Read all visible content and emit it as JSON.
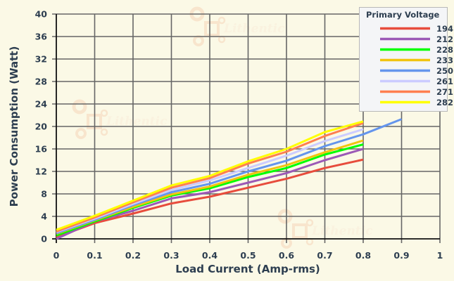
{
  "chart_data": {
    "type": "line",
    "title": "",
    "xlabel": "Load Current (Amp-rms)",
    "ylabel": "Power Consumption (Watt)",
    "xlim": [
      0,
      1
    ],
    "ylim": [
      0,
      40
    ],
    "x_ticks": [
      "0",
      "0.1",
      "0.2",
      "0.3",
      "0.4",
      "0.5",
      "0.6",
      "0.7",
      "0.8",
      "0.9",
      "1"
    ],
    "y_ticks": [
      "0",
      "4",
      "8",
      "12",
      "16",
      "20",
      "24",
      "28",
      "32",
      "36",
      "40"
    ],
    "grid": true,
    "legend_title": "Primary Voltage",
    "legend_position": "top-right",
    "series": [
      {
        "name": "194",
        "color": "#e74c3c",
        "x": [
          0,
          0.1,
          0.2,
          0.3,
          0.4,
          0.5,
          0.6,
          0.7,
          0.8
        ],
        "values": [
          0.3,
          2.8,
          4.5,
          6.3,
          7.5,
          9.1,
          10.7,
          12.6,
          14.1
        ]
      },
      {
        "name": "212",
        "color": "#9b59b6",
        "x": [
          0,
          0.1,
          0.2,
          0.3,
          0.4,
          0.5,
          0.6,
          0.7,
          0.8
        ],
        "values": [
          0.0,
          3.1,
          5.0,
          7.2,
          8.3,
          10.0,
          11.7,
          14.0,
          16.0
        ]
      },
      {
        "name": "228",
        "color": "#00ff00",
        "x": [
          0,
          0.1,
          0.2,
          0.3,
          0.4,
          0.5,
          0.6,
          0.7,
          0.8
        ],
        "values": [
          0.6,
          3.1,
          5.5,
          7.7,
          9.0,
          11.0,
          12.6,
          15.0,
          16.8
        ]
      },
      {
        "name": "233",
        "color": "#f1c40f",
        "x": [
          0,
          0.1,
          0.2,
          0.3,
          0.4,
          0.5,
          0.6,
          0.7,
          0.8
        ],
        "values": [
          0.9,
          3.3,
          5.7,
          7.9,
          9.3,
          11.4,
          13.1,
          15.4,
          17.5
        ]
      },
      {
        "name": "250",
        "color": "#6495ed",
        "x": [
          0,
          0.1,
          0.2,
          0.3,
          0.4,
          0.5,
          0.6,
          0.7,
          0.8,
          0.9
        ],
        "values": [
          1.0,
          3.4,
          6.0,
          8.3,
          9.8,
          12.0,
          13.9,
          16.5,
          18.6,
          21.3
        ]
      },
      {
        "name": "261",
        "color": "#ccccff",
        "x": [
          0,
          0.1,
          0.2,
          0.3,
          0.4,
          0.5,
          0.6,
          0.7,
          0.8
        ],
        "values": [
          1.2,
          3.6,
          6.2,
          8.7,
          10.4,
          12.6,
          14.8,
          17.4,
          19.5
        ]
      },
      {
        "name": "271",
        "color": "#ff7f50",
        "x": [
          0,
          0.1,
          0.2,
          0.3,
          0.4,
          0.5,
          0.6,
          0.7,
          0.8
        ],
        "values": [
          1.3,
          3.8,
          6.5,
          9.1,
          10.8,
          13.4,
          15.5,
          18.3,
          20.6
        ]
      },
      {
        "name": "282",
        "color": "#ffff00",
        "x": [
          0,
          0.1,
          0.2,
          0.3,
          0.4,
          0.5,
          0.6,
          0.7,
          0.8
        ],
        "values": [
          1.6,
          4.1,
          6.8,
          9.5,
          11.2,
          13.8,
          16.0,
          19.0,
          20.9
        ]
      }
    ]
  },
  "watermark": {
    "text": "Lithentic"
  },
  "colors": {
    "background": "#fbf9e6",
    "grid": "#666666",
    "axis": "#111111",
    "text": "#2d3e50",
    "legend_bg": "#f4f5f7",
    "legend_border": "#b8b8b8"
  }
}
